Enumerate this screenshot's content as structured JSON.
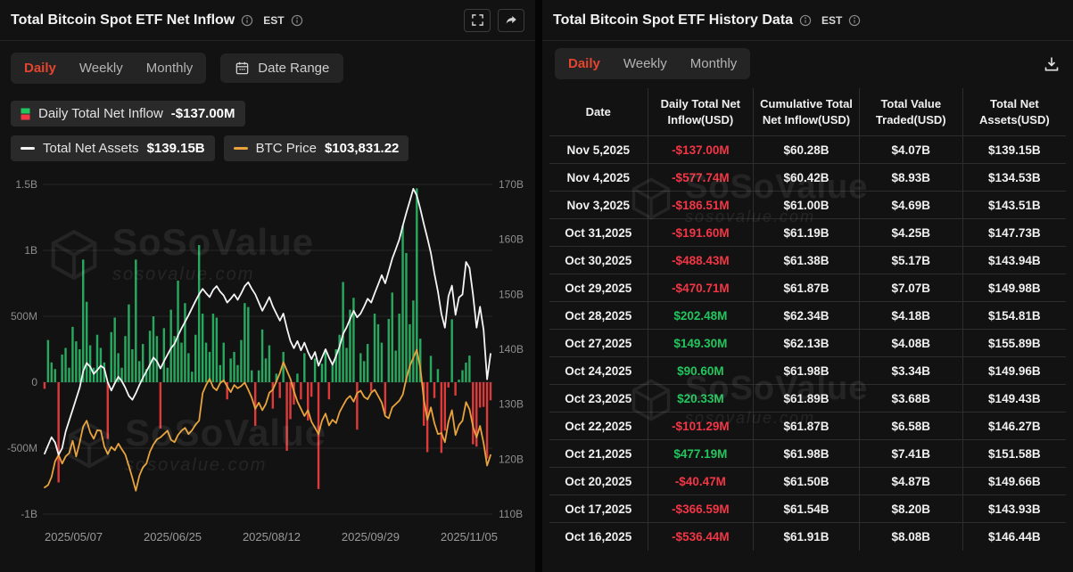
{
  "left_panel": {
    "title": "Total Bitcoin Spot ETF Net Inflow",
    "timezone": "EST",
    "tabs": [
      {
        "label": "Daily",
        "active": true
      },
      {
        "label": "Weekly",
        "active": false
      },
      {
        "label": "Monthly",
        "active": false
      }
    ],
    "date_range_label": "Date Range",
    "legend": {
      "inflow_label": "Daily Total Net Inflow",
      "inflow_value": "-$137.00M",
      "assets_label": "Total Net Assets",
      "assets_value": "$139.15B",
      "btc_label": "BTC Price",
      "btc_value": "$103,831.22"
    }
  },
  "right_panel": {
    "title": "Total Bitcoin Spot ETF History Data",
    "timezone": "EST",
    "tabs": [
      {
        "label": "Daily",
        "active": true
      },
      {
        "label": "Weekly",
        "active": false
      },
      {
        "label": "Monthly",
        "active": false
      }
    ],
    "table": {
      "columns": [
        "Date",
        "Daily Total Net Inflow(USD)",
        "Cumulative Total Net Inflow(USD)",
        "Total Value Traded(USD)",
        "Total Net Assets(USD)"
      ],
      "rows": [
        {
          "date": "Nov 5,2025",
          "inflow": "-$137.00M",
          "cumulative": "$60.28B",
          "traded": "$4.07B",
          "assets": "$139.15B"
        },
        {
          "date": "Nov 4,2025",
          "inflow": "-$577.74M",
          "cumulative": "$60.42B",
          "traded": "$8.93B",
          "assets": "$134.53B"
        },
        {
          "date": "Nov 3,2025",
          "inflow": "-$186.51M",
          "cumulative": "$61.00B",
          "traded": "$4.69B",
          "assets": "$143.51B"
        },
        {
          "date": "Oct 31,2025",
          "inflow": "-$191.60M",
          "cumulative": "$61.19B",
          "traded": "$4.25B",
          "assets": "$147.73B"
        },
        {
          "date": "Oct 30,2025",
          "inflow": "-$488.43M",
          "cumulative": "$61.38B",
          "traded": "$5.17B",
          "assets": "$143.94B"
        },
        {
          "date": "Oct 29,2025",
          "inflow": "-$470.71M",
          "cumulative": "$61.87B",
          "traded": "$7.07B",
          "assets": "$149.98B"
        },
        {
          "date": "Oct 28,2025",
          "inflow": "$202.48M",
          "cumulative": "$62.34B",
          "traded": "$4.18B",
          "assets": "$154.81B"
        },
        {
          "date": "Oct 27,2025",
          "inflow": "$149.30M",
          "cumulative": "$62.13B",
          "traded": "$4.08B",
          "assets": "$155.89B"
        },
        {
          "date": "Oct 24,2025",
          "inflow": "$90.60M",
          "cumulative": "$61.98B",
          "traded": "$3.34B",
          "assets": "$149.96B"
        },
        {
          "date": "Oct 23,2025",
          "inflow": "$20.33M",
          "cumulative": "$61.89B",
          "traded": "$3.68B",
          "assets": "$149.43B"
        },
        {
          "date": "Oct 22,2025",
          "inflow": "-$101.29M",
          "cumulative": "$61.87B",
          "traded": "$6.58B",
          "assets": "$146.27B"
        },
        {
          "date": "Oct 21,2025",
          "inflow": "$477.19M",
          "cumulative": "$61.98B",
          "traded": "$7.41B",
          "assets": "$151.58B"
        },
        {
          "date": "Oct 20,2025",
          "inflow": "-$40.47M",
          "cumulative": "$61.50B",
          "traded": "$4.87B",
          "assets": "$149.66B"
        },
        {
          "date": "Oct 17,2025",
          "inflow": "-$366.59M",
          "cumulative": "$61.54B",
          "traded": "$8.20B",
          "assets": "$143.93B"
        },
        {
          "date": "Oct 16,2025",
          "inflow": "-$536.44M",
          "cumulative": "$61.91B",
          "traded": "$8.08B",
          "assets": "$146.44B"
        }
      ]
    }
  },
  "watermark": {
    "brand": "SoSoValue",
    "domain": "sosovalue.com"
  },
  "colors": {
    "accent": "#e5452f",
    "green": "#22c55e",
    "red": "#f23645",
    "bar_green": "#28a85e",
    "bar_red": "#dd3b3b",
    "assets_line": "#f5f5f5",
    "btc_line": "#e8a33d",
    "grid": "#262626",
    "axis_text": "#8d8d8d"
  },
  "chart_data": {
    "type": "bar+line",
    "title": "Total Bitcoin Spot ETF Net Inflow (Daily)",
    "x_tick_labels": [
      "2025/05/07",
      "2025/06/25",
      "2025/08/12",
      "2025/09/29",
      "2025/11/05"
    ],
    "left_axis": {
      "min": -1000,
      "max": 1500,
      "unit": "USD M",
      "ticks": [
        {
          "v": 1500,
          "label": "1.5B"
        },
        {
          "v": 1000,
          "label": "1B"
        },
        {
          "v": 500,
          "label": "500M"
        },
        {
          "v": 0,
          "label": "0"
        },
        {
          "v": -500,
          "label": "-500M"
        },
        {
          "v": -1000,
          "label": "-1B"
        }
      ]
    },
    "right_axis": {
      "min": 110,
      "max": 170,
      "suffix": "B",
      "ticks": [
        170,
        160,
        150,
        140,
        130,
        120,
        110
      ],
      "unit": "USD B"
    },
    "btc_scale": {
      "min": 91.4,
      "max": 160.6,
      "unit": "USD K"
    },
    "series": [
      {
        "name": "Daily Total Net Inflow",
        "type": "bar",
        "unit": "USD M",
        "values": [
          -50,
          320,
          150,
          100,
          -760,
          210,
          260,
          110,
          420,
          310,
          250,
          930,
          610,
          280,
          110,
          360,
          260,
          150,
          -430,
          380,
          490,
          220,
          110,
          350,
          590,
          250,
          930,
          160,
          290,
          100,
          390,
          500,
          350,
          -350,
          410,
          110,
          550,
          350,
          770,
          300,
          600,
          220,
          80,
          360,
          1040,
          520,
          300,
          230,
          520,
          490,
          130,
          300,
          -130,
          180,
          230,
          130,
          320,
          600,
          570,
          90,
          -330,
          90,
          400,
          180,
          280,
          -200,
          65,
          -120,
          230,
          -520,
          -280,
          -170,
          65,
          -130,
          220,
          -290,
          -110,
          180,
          -810,
          140,
          250,
          -130,
          140,
          250,
          360,
          760,
          260,
          550,
          640,
          -360,
          220,
          160,
          290,
          -70,
          520,
          440,
          300,
          -240,
          480,
          680,
          240,
          520,
          1190,
          980,
          440,
          620,
          1470,
          330,
          -330,
          -530,
          200,
          -120,
          100,
          -536,
          -367,
          -40,
          477,
          -101,
          20,
          91,
          149,
          202,
          -471,
          -488,
          -192,
          -187,
          -578,
          -137
        ]
      },
      {
        "name": "Total Net Assets",
        "type": "line",
        "unit": "USD B",
        "color": "#f5f5f5",
        "values": [
          121,
          122.5,
          124,
          123,
          120.8,
          122,
          125,
          127,
          129,
          131,
          133,
          136,
          137.5,
          136.8,
          135.5,
          136.2,
          137,
          136.5,
          134,
          132.5,
          133.8,
          135,
          134.2,
          133,
          131.5,
          130.8,
          132,
          133.5,
          134.8,
          136,
          137.2,
          138.5,
          137.8,
          136.5,
          137.8,
          139,
          140.2,
          141,
          142.5,
          143.8,
          145,
          146.2,
          147.5,
          148.8,
          150,
          151,
          150.2,
          149.5,
          150.8,
          151.5,
          150.5,
          149.8,
          148.5,
          149.2,
          150,
          149,
          150.2,
          151.5,
          152.2,
          151,
          150,
          148.5,
          147,
          148.2,
          149.5,
          147.8,
          146.5,
          145.2,
          146.5,
          143.8,
          141.5,
          140.2,
          141.5,
          139.8,
          141.2,
          139.5,
          138.2,
          139.5,
          137,
          138.5,
          140,
          138.5,
          137.2,
          138.8,
          140.5,
          142.8,
          144,
          145.5,
          147,
          145.8,
          146.5,
          147.8,
          149.2,
          148.5,
          150.2,
          151.8,
          153.5,
          152,
          154.2,
          156.5,
          158.2,
          160,
          162.5,
          164.8,
          167,
          169.2,
          168,
          165.5,
          162.8,
          160.2,
          157.5,
          153.8,
          150.5,
          146.44,
          143.93,
          149.66,
          151.58,
          146.27,
          149.43,
          149.96,
          155.89,
          154.81,
          149.98,
          143.94,
          147.73,
          143.51,
          134.53,
          139.15
        ]
      },
      {
        "name": "BTC Price",
        "type": "line",
        "unit": "USD K",
        "color": "#e8a33d",
        "values": [
          97,
          97.5,
          99.2,
          102.5,
          103.8,
          102,
          103.5,
          104.2,
          106.8,
          103.5,
          106.4,
          109.8,
          111,
          108.5,
          107.2,
          109,
          108.9,
          105.6,
          104,
          105.5,
          104.8,
          106.2,
          105,
          103.9,
          101.5,
          99,
          96.3,
          99.5,
          101.2,
          102,
          104.5,
          106,
          107.1,
          107.5,
          108.2,
          108.9,
          107,
          106.5,
          108,
          108.9,
          109.5,
          108.2,
          109,
          110.2,
          111,
          116.8,
          118.5,
          119.8,
          118,
          117.4,
          118.9,
          119.5,
          118.2,
          117,
          118.5,
          117.8,
          118.3,
          119,
          117.5,
          115.8,
          113.5,
          114.8,
          113.2,
          114.5,
          116.9,
          117.5,
          119.2,
          121,
          123.3,
          121.5,
          119.8,
          117.2,
          115,
          113.5,
          112,
          113.2,
          110.8,
          109.5,
          108.2,
          111,
          112.5,
          110,
          111.2,
          110.5,
          112.8,
          114.2,
          115.5,
          116.2,
          115,
          116.8,
          117.3,
          116,
          115.5,
          116.9,
          117.5,
          116.2,
          114.8,
          112,
          111.5,
          113.8,
          114.5,
          115.2,
          116.5,
          119.8,
          122.5,
          124.2,
          125.9,
          122,
          115.5,
          111.2,
          113.8,
          110.5,
          108.2,
          108.4,
          106.5,
          110.8,
          113.2,
          108,
          110.1,
          111,
          114.9,
          113.4,
          109.8,
          107.5,
          109.9,
          106.3,
          101.6,
          103.8
        ]
      }
    ]
  }
}
